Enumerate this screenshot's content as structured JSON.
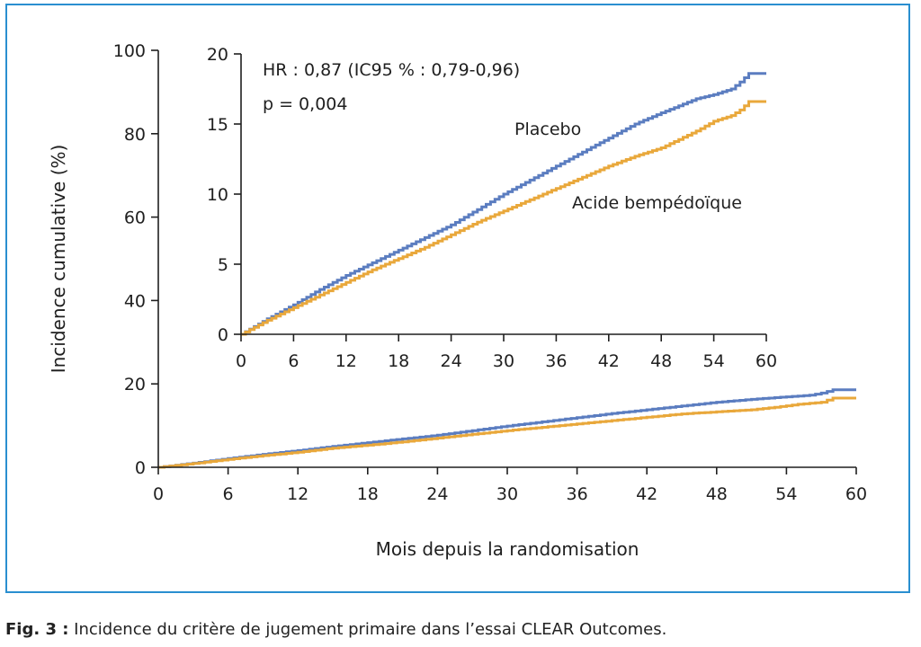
{
  "colors": {
    "placebo": "#5b7dc0",
    "bempedoic": "#e9a83b",
    "axis": "#1f1f1f",
    "frame": "#2a8fd0"
  },
  "caption": {
    "label": "Fig. 3 :",
    "text": " Incidence du critère de jugement primaire dans l’essai CLEAR Outcomes."
  },
  "chart_data": [
    {
      "id": "main",
      "type": "line",
      "step": true,
      "xlabel": "Mois depuis la randomisation",
      "ylabel": "Incidence cumulative (%)",
      "xlim": [
        0,
        60
      ],
      "ylim": [
        0,
        100
      ],
      "xticks": [
        0,
        6,
        12,
        18,
        24,
        30,
        36,
        42,
        48,
        54,
        60
      ],
      "yticks": [
        0,
        20,
        40,
        60,
        80,
        100
      ],
      "series": [
        {
          "key": "placebo",
          "x": [
            0,
            3,
            6,
            9,
            12,
            15,
            18,
            21,
            24,
            27,
            30,
            33,
            36,
            39,
            42,
            45,
            48,
            51,
            54,
            56,
            57,
            58,
            60
          ],
          "y": [
            0,
            1.0,
            2.1,
            3.1,
            4.0,
            5.0,
            5.9,
            6.8,
            7.7,
            8.8,
            9.9,
            10.9,
            11.9,
            12.9,
            13.8,
            14.7,
            15.6,
            16.3,
            16.9,
            17.3,
            17.8,
            18.6,
            18.6
          ]
        },
        {
          "key": "bempedoic",
          "x": [
            0,
            3,
            6,
            9,
            12,
            15,
            18,
            21,
            24,
            27,
            30,
            33,
            36,
            39,
            42,
            45,
            48,
            51,
            53,
            55,
            57,
            58,
            60
          ],
          "y": [
            0,
            0.9,
            1.9,
            2.8,
            3.6,
            4.6,
            5.3,
            6.1,
            7.0,
            7.9,
            8.8,
            9.6,
            10.4,
            11.2,
            12.0,
            12.8,
            13.3,
            13.8,
            14.4,
            15.1,
            15.6,
            16.6,
            16.6
          ]
        }
      ]
    },
    {
      "id": "inset",
      "type": "line",
      "step": true,
      "xlim": [
        0,
        60
      ],
      "ylim": [
        0,
        20
      ],
      "xticks": [
        0,
        6,
        12,
        18,
        24,
        30,
        36,
        42,
        48,
        54,
        60
      ],
      "yticks": [
        0,
        5,
        10,
        15,
        20
      ],
      "annotations": [
        "HR : 0,87 (IC95 % : 0,79-0,96)",
        "p  = 0,004"
      ],
      "series": [
        {
          "key": "placebo",
          "name": "Placebo",
          "x": [
            0,
            3,
            6,
            9,
            12,
            15,
            18,
            21,
            24,
            27,
            30,
            33,
            36,
            39,
            42,
            45,
            48,
            50,
            52,
            54,
            56,
            57,
            58,
            60
          ],
          "y": [
            0,
            1.1,
            2.1,
            3.2,
            4.2,
            5.1,
            6.0,
            6.9,
            7.8,
            8.9,
            10.0,
            11.0,
            12.0,
            13.0,
            14.0,
            15.0,
            15.8,
            16.3,
            16.8,
            17.1,
            17.5,
            18.0,
            18.6,
            18.6
          ]
        },
        {
          "key": "bempedoic",
          "name": "Acide bempédoïque",
          "x": [
            0,
            3,
            6,
            9,
            12,
            15,
            18,
            21,
            24,
            27,
            30,
            33,
            36,
            39,
            42,
            45,
            48,
            50,
            52,
            54,
            56,
            57,
            58,
            60
          ],
          "y": [
            0,
            1.0,
            1.9,
            2.8,
            3.7,
            4.6,
            5.4,
            6.2,
            7.1,
            8.0,
            8.8,
            9.6,
            10.4,
            11.2,
            12.0,
            12.7,
            13.3,
            13.9,
            14.5,
            15.2,
            15.6,
            16.0,
            16.6,
            16.6
          ]
        }
      ]
    }
  ]
}
